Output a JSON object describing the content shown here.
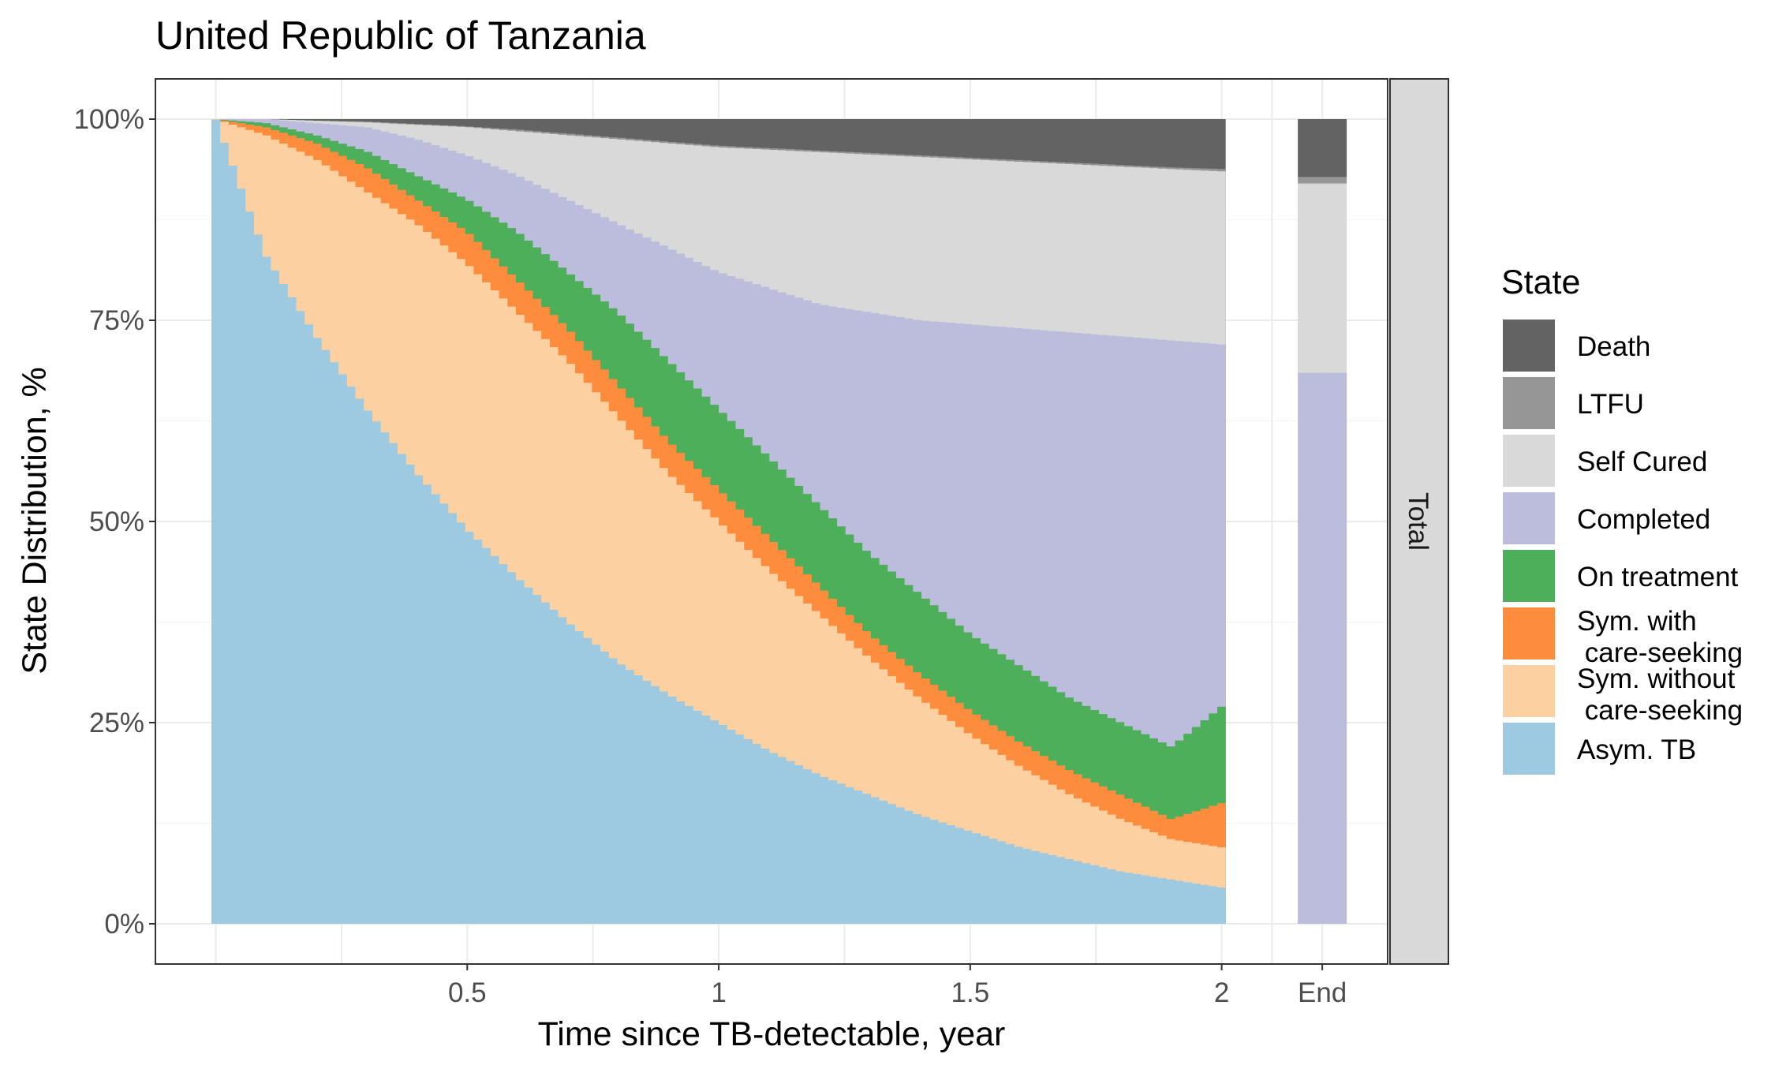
{
  "chart_data": {
    "type": "area",
    "title": "United Republic of Tanzania",
    "xlabel": "Time since TB-detectable, year",
    "ylabel": "State Distribution, %",
    "facet_label": "Total",
    "x_ticks": [
      {
        "value": 0.5,
        "label": "0.5"
      },
      {
        "value": 1,
        "label": "1"
      },
      {
        "value": 1.5,
        "label": "1.5"
      },
      {
        "value": 2,
        "label": "2"
      }
    ],
    "end_label": "End",
    "xlim": [
      -0.12,
      2.33
    ],
    "y_ticks": [
      {
        "value": 0,
        "label": "0%"
      },
      {
        "value": 25,
        "label": "25%"
      },
      {
        "value": 50,
        "label": "50%"
      },
      {
        "value": 75,
        "label": "75%"
      },
      {
        "value": 100,
        "label": "100%"
      }
    ],
    "ylim": [
      -5,
      105
    ],
    "grid": true,
    "legend": {
      "title": "State",
      "position": "right"
    },
    "states": [
      {
        "name": "Death",
        "color": "#636363"
      },
      {
        "name": "LTFU",
        "color": "#969696"
      },
      {
        "name": "Self Cured",
        "color": "#d9d9d9"
      },
      {
        "name": "Completed",
        "color": "#bcbddc"
      },
      {
        "name": "On treatment",
        "color": "#4daf5a"
      },
      {
        "name": "Sym. with\n care-seeking",
        "color": "#fd8d3c"
      },
      {
        "name": "Sym. without\n care-seeking",
        "color": "#fdd0a2"
      },
      {
        "name": "Asym. TB",
        "color": "#9ecae1"
      }
    ],
    "series_cumulative_description": "Stacked boundaries (cumulative %, from bottom) at time points; between points values are interpolated",
    "x": [
      0,
      0.1,
      0.2,
      0.3,
      0.4,
      0.5,
      0.6,
      0.7,
      0.8,
      0.9,
      1.0,
      1.1,
      1.2,
      1.3,
      1.4,
      1.5,
      1.6,
      1.7,
      1.8,
      1.9,
      2.0
    ],
    "stack_tops": {
      "Asym. TB": [
        100,
        83,
        73,
        64,
        56,
        49,
        43,
        37.5,
        32.5,
        28.5,
        25,
        21.5,
        18.5,
        16,
        13.5,
        11.5,
        9.5,
        8,
        6.5,
        5.5,
        4.5
      ],
      "Sym. without\n care-seeking": [
        100,
        98,
        95,
        91,
        87,
        82,
        76,
        70,
        63,
        56,
        50,
        44,
        38.5,
        33,
        28,
        23.5,
        19.5,
        16,
        13,
        10.5,
        9.5
      ],
      "Sym. with\n care-seeking": [
        100,
        99,
        97,
        94,
        90,
        86,
        80,
        74,
        67,
        60,
        54,
        48,
        42,
        36,
        31,
        26.5,
        22.5,
        19,
        16,
        13,
        15
      ],
      "On treatment": [
        100,
        99.5,
        98,
        96,
        93,
        90,
        86,
        81,
        76,
        70,
        64,
        58,
        52,
        46,
        41,
        36,
        32,
        28,
        25,
        22,
        27
      ],
      "Completed": [
        100,
        100,
        99.5,
        99,
        97.5,
        95.5,
        93,
        90,
        87,
        84,
        81,
        79,
        77,
        76,
        75,
        74.5,
        74,
        73.5,
        73,
        72.5,
        72
      ],
      "Self Cured": [
        100,
        100,
        99.8,
        99.6,
        99.3,
        99,
        98.5,
        98,
        97.5,
        97,
        96.5,
        96.2,
        95.9,
        95.6,
        95.3,
        95,
        94.7,
        94.4,
        94.1,
        93.8,
        93.5
      ],
      "LTFU": [
        100,
        100,
        99.8,
        99.7,
        99.4,
        99.1,
        98.7,
        98.2,
        97.7,
        97.2,
        96.7,
        96.4,
        96.1,
        95.8,
        95.5,
        95.2,
        94.9,
        94.6,
        94.3,
        94,
        93.8
      ],
      "Death": [
        100,
        100,
        100,
        100,
        100,
        100,
        100,
        100,
        100,
        100,
        100,
        100,
        100,
        100,
        100,
        100,
        100,
        100,
        100,
        100,
        100
      ]
    },
    "end_bar": {
      "Completed": 68.5,
      "Self Cured": 23.5,
      "LTFU": 0.8,
      "Death": 7.2
    }
  }
}
